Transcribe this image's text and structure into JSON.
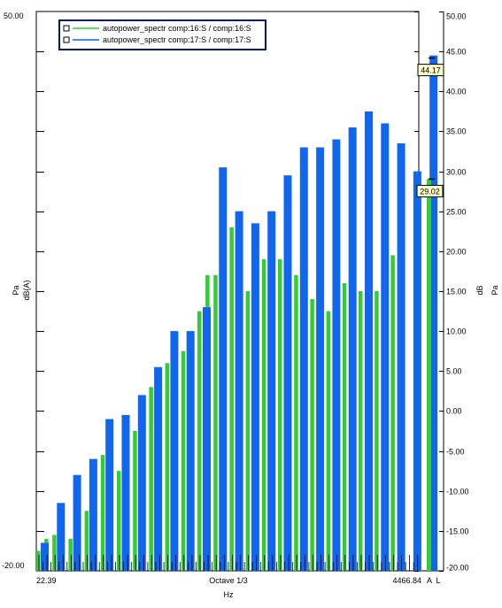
{
  "chart_data": {
    "type": "bar",
    "legend": {
      "placement": "top-left",
      "entries": [
        {
          "label": "autopower_spectr comp:16:S / comp:16:S",
          "color": "#33cc33"
        },
        {
          "label": "autopower_spectr comp:17:S / comp:17:S",
          "color": "#1166ee"
        }
      ]
    },
    "left_axis": {
      "top_label": "50.00",
      "bottom_label": "-20.00",
      "label_line1": "Pa",
      "label_line2": "dB(A)"
    },
    "right_axis": {
      "labels": [
        "50.00",
        "45.00",
        "40.00",
        "35.00",
        "30.00",
        "25.00",
        "20.00",
        "15.00",
        "10.00",
        "5.00",
        "0.00",
        "-5.00",
        "-10.00",
        "-15.00",
        "-20.00"
      ],
      "ylim": [
        -20,
        50
      ],
      "label_line1": "dB",
      "label_line2": "Pa"
    },
    "x_axis": {
      "start_label": "22.39",
      "middle_label": "Octave 1/3",
      "end_label": "4466.84",
      "unit_label": "Hz",
      "extra_labels": "A  L"
    },
    "series": [
      {
        "name": "autopower_spectr comp:16:S / comp:16:S",
        "color": "#33cc33",
        "values": [
          -17.5,
          -16.0,
          -15.5,
          -13.0,
          -16.0,
          -13.0,
          -12.5,
          -8.5,
          -5.5,
          -8.5,
          -7.5,
          -5.0,
          -2.5,
          0.0,
          3.0,
          3.5,
          6.0,
          7.5,
          7.5,
          6.0,
          12.5,
          17.0,
          17.0,
          23.0,
          23.0,
          20.0,
          15.0,
          15.0,
          19.0,
          19.0,
          19.0,
          18.5,
          17.0,
          15.0,
          14.0,
          14.0,
          12.5,
          13.0,
          16.0,
          16.0,
          15.0,
          16.0,
          15.0,
          15.0,
          19.5,
          19.5
        ]
      },
      {
        "name": "autopower_spectr comp:17:S / comp:17:S",
        "color": "#1166ee",
        "values": [
          -16.5,
          -11.5,
          -8.0,
          -6.0,
          -1.0,
          -0.5,
          2.0,
          5.5,
          10.0,
          10.0,
          13.0,
          30.5,
          25.0,
          23.5,
          25.0,
          29.5,
          33.0,
          33.0,
          34.0,
          35.5,
          37.5,
          36.0,
          33.5,
          30.0,
          44.5
        ]
      }
    ],
    "cursors": [
      {
        "label": "44.17",
        "value": 44.17
      },
      {
        "label": "29.02",
        "value": 29.02
      }
    ],
    "end_bars": [
      {
        "series": "green",
        "value": 29.02
      },
      {
        "series": "blue",
        "value": 44.17
      }
    ]
  }
}
